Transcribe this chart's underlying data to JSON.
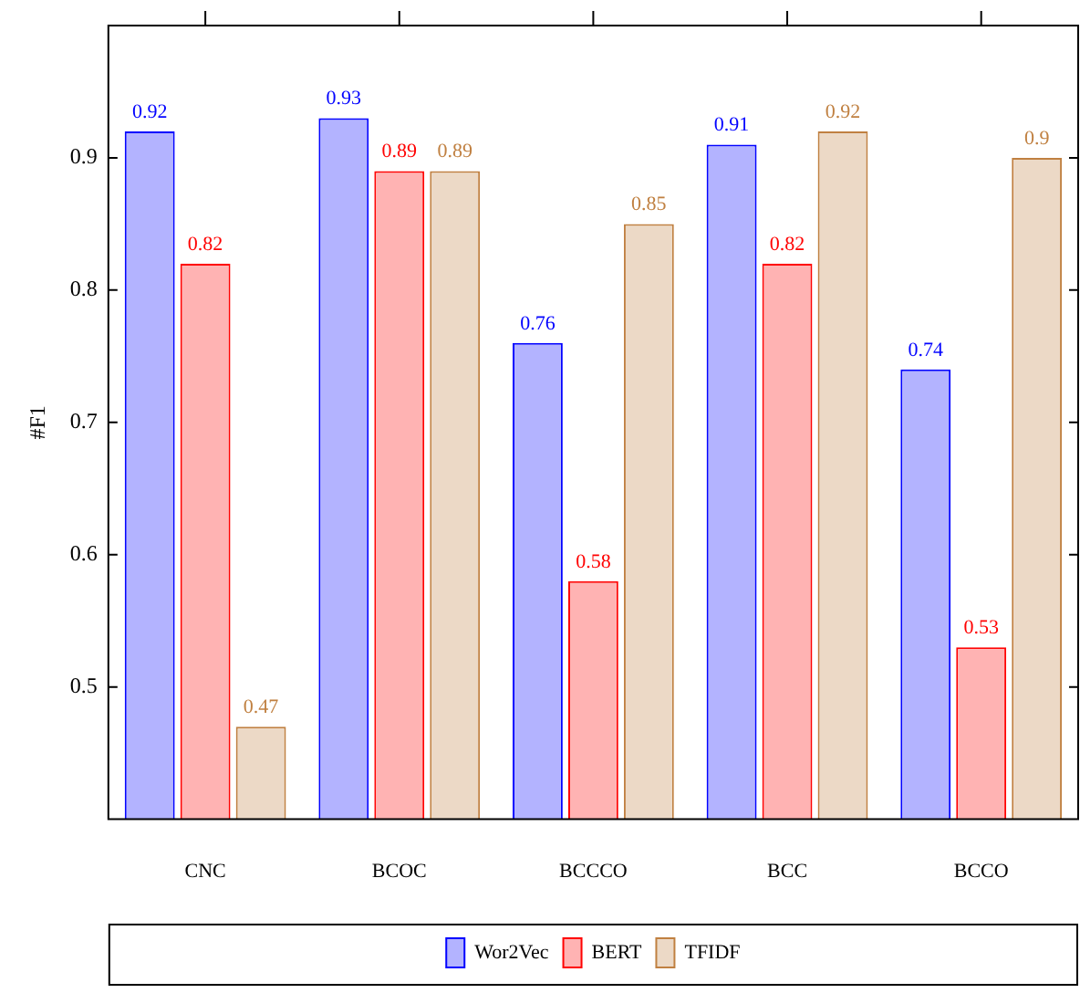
{
  "chart_data": {
    "type": "bar",
    "ylabel": "#F1",
    "categories": [
      "CNC",
      "BCOC",
      "BCCCO",
      "BCC",
      "BCCO"
    ],
    "series": [
      {
        "name": "Wor2Vec",
        "color": "#b3b3ff",
        "values": [
          0.92,
          0.93,
          0.76,
          0.91,
          0.74
        ]
      },
      {
        "name": "BERT",
        "color": "#ffb3b3",
        "values": [
          0.82,
          0.89,
          0.58,
          0.82,
          0.53
        ]
      },
      {
        "name": "TFIDF",
        "color": "#ecd9c6",
        "values": [
          0.47,
          0.89,
          0.85,
          0.92,
          0.9
        ]
      }
    ],
    "ylim": [
      0.4,
      1.0
    ],
    "yticks": [
      0.5,
      0.6,
      0.7,
      0.8,
      0.9
    ],
    "grid": false,
    "legend": "bottom",
    "data_labels": true
  }
}
